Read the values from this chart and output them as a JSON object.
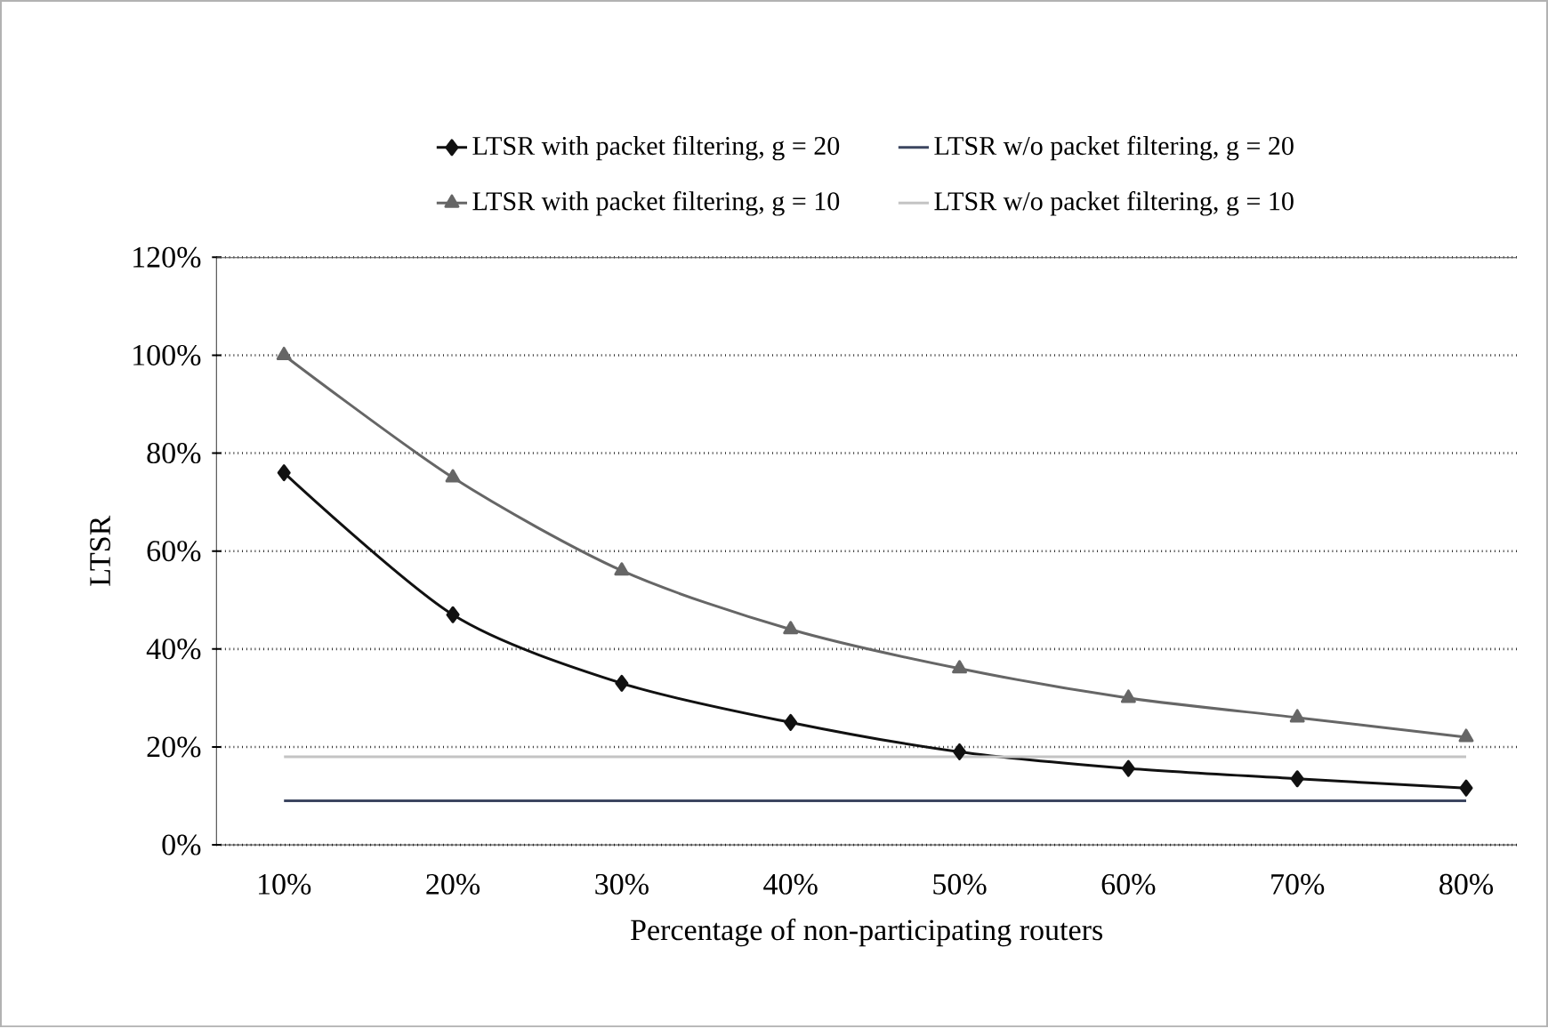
{
  "chart_data": {
    "type": "line",
    "xlabel": "Percentage of non-participating routers",
    "ylabel": "LTSR",
    "categories": [
      "10%",
      "20%",
      "30%",
      "40%",
      "50%",
      "60%",
      "70%",
      "80%"
    ],
    "series": [
      {
        "name": "LTSR with packet filtering, g = 20",
        "color": "#111111",
        "marker": "diamond",
        "values": [
          76,
          47,
          33,
          25,
          19,
          15.6,
          13.5,
          11.6
        ]
      },
      {
        "name": "LTSR w/o packet filtering, g = 20",
        "color": "#3c4660",
        "marker": "none",
        "values": [
          9,
          9,
          9,
          9,
          9,
          9,
          9,
          9
        ]
      },
      {
        "name": "LTSR with packet filtering, g = 10",
        "color": "#666666",
        "marker": "triangle",
        "values": [
          100,
          75,
          56,
          44,
          36,
          30,
          26,
          22
        ]
      },
      {
        "name": "LTSR w/o packet filtering, g = 10",
        "color": "#c4c4c4",
        "marker": "none",
        "values": [
          18,
          18,
          18,
          18,
          18,
          18,
          18,
          18
        ]
      }
    ],
    "ylim": [
      0,
      120
    ],
    "yticks": [
      {
        "value": 0,
        "label": "0%"
      },
      {
        "value": 20,
        "label": "20%"
      },
      {
        "value": 40,
        "label": "40%"
      },
      {
        "value": 60,
        "label": "60%"
      },
      {
        "value": 80,
        "label": "80%"
      },
      {
        "value": 100,
        "label": "100%"
      },
      {
        "value": 120,
        "label": "120%"
      }
    ],
    "grid": "y",
    "legend": "top",
    "line_style": "solid"
  }
}
